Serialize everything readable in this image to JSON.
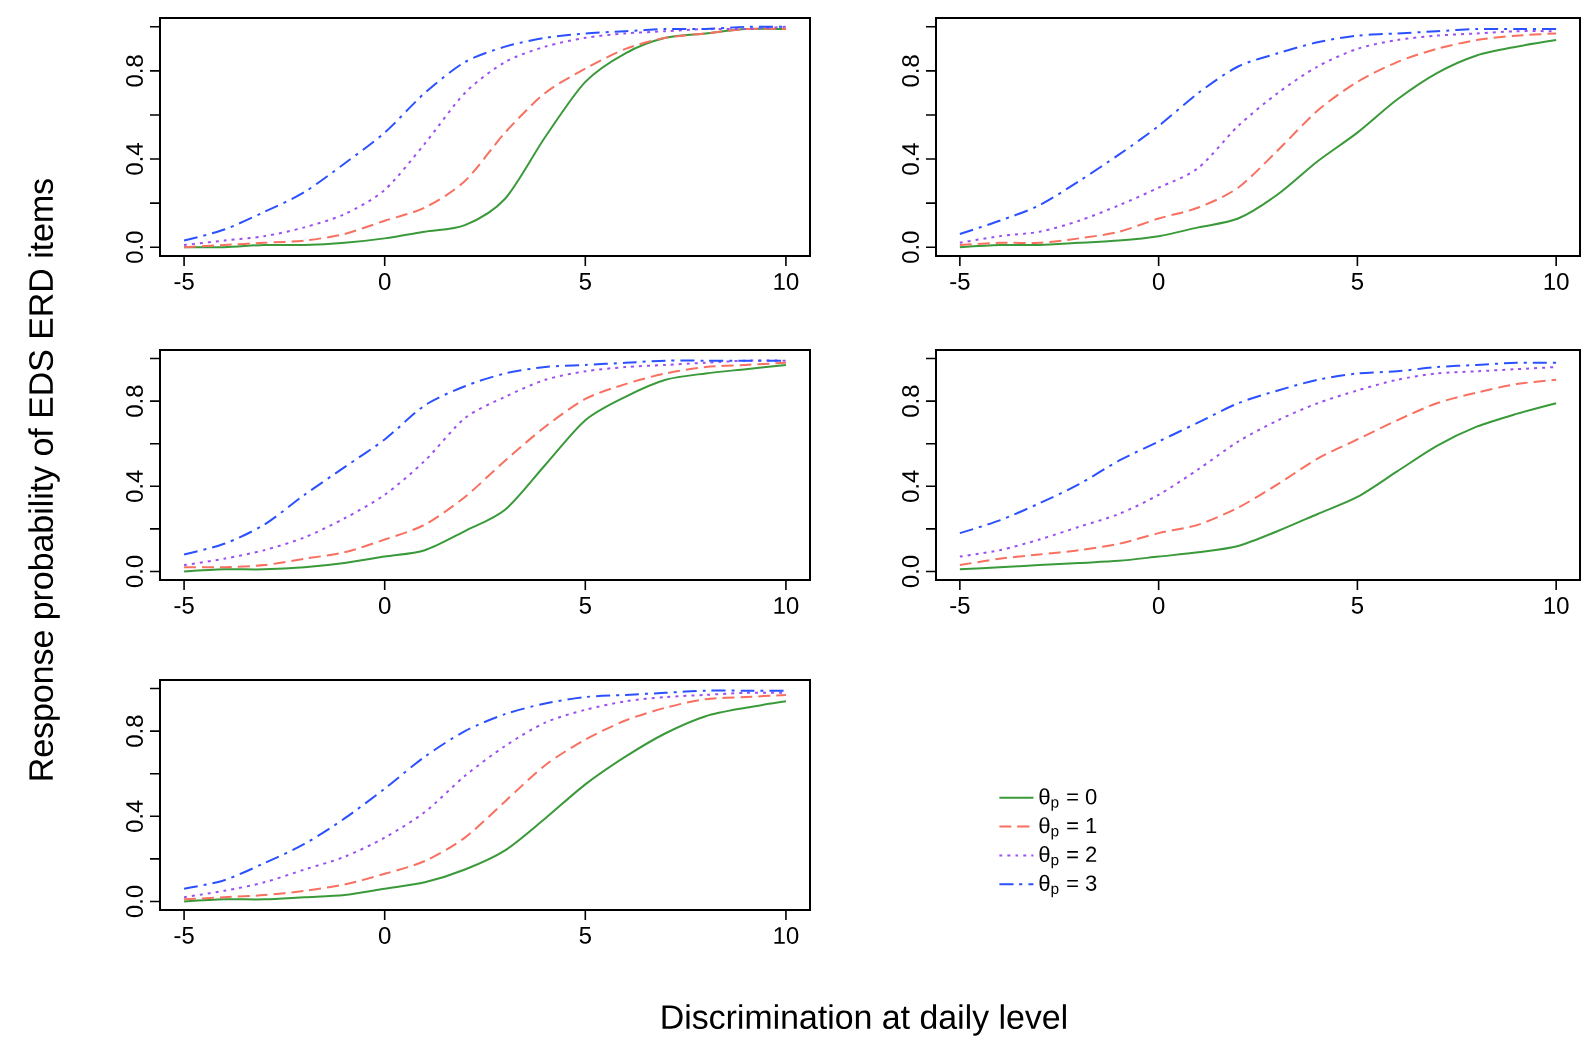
{
  "chart_data": [
    {
      "type": "line",
      "ylabel": "Response probability of EDS ERD items",
      "x": [
        -5,
        -4,
        -3,
        -2,
        -1,
        0,
        1,
        2,
        3,
        4,
        5,
        6,
        7,
        8,
        9,
        10
      ],
      "xlim": [
        -5.6,
        10.6
      ],
      "ylim": [
        -0.04,
        1.04
      ],
      "xticks": [
        -5,
        0,
        5,
        10
      ],
      "yticks": [
        {
          "value": 0,
          "label": "0.0"
        },
        {
          "value": 0.2,
          "label": null
        },
        {
          "value": 0.4,
          "label": "0.4"
        },
        {
          "value": 0.6,
          "label": null
        },
        {
          "value": 0.8,
          "label": "0.8"
        },
        {
          "value": 1,
          "label": null
        }
      ],
      "series": [
        {
          "color": "#3a9a3a",
          "line_style": "solid",
          "values": [
            0.0,
            0.0,
            0.01,
            0.01,
            0.02,
            0.04,
            0.07,
            0.1,
            0.22,
            0.5,
            0.75,
            0.88,
            0.95,
            0.97,
            0.99,
            0.99
          ]
        },
        {
          "color": "#f87060",
          "line_style": "dashed",
          "values": [
            0.0,
            0.01,
            0.02,
            0.03,
            0.06,
            0.12,
            0.18,
            0.3,
            0.52,
            0.7,
            0.81,
            0.9,
            0.95,
            0.97,
            0.99,
            0.99
          ]
        },
        {
          "color": "#9b4ff0",
          "line_style": "dotted",
          "values": [
            0.01,
            0.03,
            0.05,
            0.09,
            0.15,
            0.26,
            0.47,
            0.7,
            0.84,
            0.91,
            0.95,
            0.97,
            0.98,
            0.99,
            0.99,
            1.0
          ]
        },
        {
          "color": "#2b50ff",
          "line_style": "dashdot",
          "values": [
            0.03,
            0.08,
            0.16,
            0.25,
            0.38,
            0.52,
            0.7,
            0.84,
            0.91,
            0.95,
            0.97,
            0.98,
            0.99,
            0.99,
            1.0,
            1.0
          ]
        }
      ]
    },
    {
      "type": "line",
      "x": [
        -5,
        -4,
        -3,
        -2,
        -1,
        0,
        1,
        2,
        3,
        4,
        5,
        6,
        7,
        8,
        9,
        10
      ],
      "xlim": [
        -5.6,
        10.6
      ],
      "ylim": [
        -0.04,
        1.04
      ],
      "xticks": [
        -5,
        0,
        5,
        10
      ],
      "yticks": [
        {
          "value": 0,
          "label": "0.0"
        },
        {
          "value": 0.2,
          "label": null
        },
        {
          "value": 0.4,
          "label": "0.4"
        },
        {
          "value": 0.6,
          "label": null
        },
        {
          "value": 0.8,
          "label": "0.8"
        },
        {
          "value": 1,
          "label": null
        }
      ],
      "series": [
        {
          "color": "#3a9a3a",
          "line_style": "solid",
          "values": [
            0.0,
            0.01,
            0.01,
            0.02,
            0.03,
            0.05,
            0.09,
            0.13,
            0.24,
            0.39,
            0.52,
            0.67,
            0.79,
            0.87,
            0.91,
            0.94
          ]
        },
        {
          "color": "#f87060",
          "line_style": "dashed",
          "values": [
            0.01,
            0.02,
            0.02,
            0.04,
            0.07,
            0.13,
            0.18,
            0.27,
            0.44,
            0.62,
            0.75,
            0.84,
            0.9,
            0.94,
            0.96,
            0.97
          ]
        },
        {
          "color": "#9b4ff0",
          "line_style": "dotted",
          "values": [
            0.02,
            0.05,
            0.07,
            0.12,
            0.19,
            0.27,
            0.36,
            0.55,
            0.7,
            0.82,
            0.9,
            0.94,
            0.96,
            0.97,
            0.98,
            0.98
          ]
        },
        {
          "color": "#2b50ff",
          "line_style": "dashdot",
          "values": [
            0.06,
            0.12,
            0.19,
            0.3,
            0.42,
            0.55,
            0.7,
            0.82,
            0.88,
            0.93,
            0.96,
            0.97,
            0.98,
            0.99,
            0.99,
            0.99
          ]
        }
      ]
    },
    {
      "type": "line",
      "x": [
        -5,
        -4,
        -3,
        -2,
        -1,
        0,
        1,
        2,
        3,
        4,
        5,
        6,
        7,
        8,
        9,
        10
      ],
      "xlim": [
        -5.6,
        10.6
      ],
      "ylim": [
        -0.04,
        1.04
      ],
      "xticks": [
        -5,
        0,
        5,
        10
      ],
      "yticks": [
        {
          "value": 0,
          "label": "0.0"
        },
        {
          "value": 0.2,
          "label": null
        },
        {
          "value": 0.4,
          "label": "0.4"
        },
        {
          "value": 0.6,
          "label": null
        },
        {
          "value": 0.8,
          "label": "0.8"
        },
        {
          "value": 1,
          "label": null
        }
      ],
      "series": [
        {
          "color": "#3a9a3a",
          "line_style": "solid",
          "values": [
            0.0,
            0.01,
            0.01,
            0.02,
            0.04,
            0.07,
            0.1,
            0.19,
            0.29,
            0.5,
            0.71,
            0.82,
            0.9,
            0.93,
            0.95,
            0.97
          ]
        },
        {
          "color": "#f87060",
          "line_style": "dashed",
          "values": [
            0.02,
            0.02,
            0.03,
            0.06,
            0.09,
            0.15,
            0.22,
            0.35,
            0.52,
            0.68,
            0.81,
            0.88,
            0.93,
            0.96,
            0.97,
            0.98
          ]
        },
        {
          "color": "#9b4ff0",
          "line_style": "dotted",
          "values": [
            0.03,
            0.06,
            0.1,
            0.16,
            0.25,
            0.36,
            0.52,
            0.72,
            0.82,
            0.9,
            0.94,
            0.96,
            0.97,
            0.98,
            0.99,
            0.99
          ]
        },
        {
          "color": "#2b50ff",
          "line_style": "dashdot",
          "values": [
            0.08,
            0.13,
            0.22,
            0.36,
            0.49,
            0.62,
            0.78,
            0.87,
            0.93,
            0.96,
            0.97,
            0.98,
            0.99,
            0.99,
            0.99,
            0.99
          ]
        }
      ]
    },
    {
      "type": "line",
      "x": [
        -5,
        -4,
        -3,
        -2,
        -1,
        0,
        1,
        2,
        3,
        4,
        5,
        6,
        7,
        8,
        9,
        10
      ],
      "xlim": [
        -5.6,
        10.6
      ],
      "ylim": [
        -0.04,
        1.04
      ],
      "xticks": [
        -5,
        0,
        5,
        10
      ],
      "yticks": [
        {
          "value": 0,
          "label": "0.0"
        },
        {
          "value": 0.2,
          "label": null
        },
        {
          "value": 0.4,
          "label": "0.4"
        },
        {
          "value": 0.6,
          "label": null
        },
        {
          "value": 0.8,
          "label": "0.8"
        },
        {
          "value": 1,
          "label": null
        }
      ],
      "series": [
        {
          "color": "#3a9a3a",
          "line_style": "solid",
          "values": [
            0.01,
            0.02,
            0.03,
            0.04,
            0.05,
            0.07,
            0.09,
            0.12,
            0.19,
            0.27,
            0.35,
            0.47,
            0.59,
            0.68,
            0.74,
            0.79
          ]
        },
        {
          "color": "#f87060",
          "line_style": "dashed",
          "values": [
            0.03,
            0.06,
            0.08,
            0.1,
            0.13,
            0.18,
            0.22,
            0.3,
            0.41,
            0.53,
            0.62,
            0.71,
            0.79,
            0.84,
            0.88,
            0.9
          ]
        },
        {
          "color": "#9b4ff0",
          "line_style": "dotted",
          "values": [
            0.07,
            0.1,
            0.15,
            0.21,
            0.27,
            0.36,
            0.48,
            0.61,
            0.71,
            0.79,
            0.85,
            0.9,
            0.93,
            0.94,
            0.95,
            0.96
          ]
        },
        {
          "color": "#2b50ff",
          "line_style": "dashdot",
          "values": [
            0.18,
            0.24,
            0.32,
            0.41,
            0.52,
            0.61,
            0.7,
            0.79,
            0.85,
            0.9,
            0.93,
            0.94,
            0.96,
            0.97,
            0.98,
            0.98
          ]
        }
      ]
    },
    {
      "type": "line",
      "xlabel": "Discrimination at daily level",
      "legend": "right",
      "x": [
        -5,
        -4,
        -3,
        -2,
        -1,
        0,
        1,
        2,
        3,
        4,
        5,
        6,
        7,
        8,
        9,
        10
      ],
      "xlim": [
        -5.6,
        10.6
      ],
      "ylim": [
        -0.04,
        1.04
      ],
      "xticks": [
        -5,
        0,
        5,
        10
      ],
      "yticks": [
        {
          "value": 0,
          "label": "0.0"
        },
        {
          "value": 0.2,
          "label": null
        },
        {
          "value": 0.4,
          "label": "0.4"
        },
        {
          "value": 0.6,
          "label": null
        },
        {
          "value": 0.8,
          "label": "0.8"
        },
        {
          "value": 1,
          "label": null
        }
      ],
      "series": [
        {
          "name": "θ$_{p}$ = 0",
          "color": "#3a9a3a",
          "line_style": "solid",
          "values": [
            0.0,
            0.01,
            0.01,
            0.02,
            0.03,
            0.06,
            0.09,
            0.15,
            0.24,
            0.39,
            0.55,
            0.68,
            0.79,
            0.87,
            0.91,
            0.94
          ]
        },
        {
          "name": "θ$_{p}$ = 1",
          "color": "#f87060",
          "line_style": "dashed",
          "values": [
            0.01,
            0.02,
            0.03,
            0.05,
            0.08,
            0.13,
            0.19,
            0.3,
            0.47,
            0.64,
            0.76,
            0.85,
            0.91,
            0.95,
            0.96,
            0.97
          ]
        },
        {
          "name": "θ$_{p}$ = 2",
          "color": "#9b4ff0",
          "line_style": "dotted",
          "values": [
            0.02,
            0.05,
            0.09,
            0.15,
            0.21,
            0.3,
            0.42,
            0.59,
            0.73,
            0.84,
            0.9,
            0.94,
            0.96,
            0.97,
            0.98,
            0.98
          ]
        },
        {
          "name": "θ$_{p}$ = 3",
          "color": "#2b50ff",
          "line_style": "dashdot",
          "values": [
            0.06,
            0.1,
            0.18,
            0.27,
            0.39,
            0.53,
            0.68,
            0.8,
            0.88,
            0.93,
            0.96,
            0.97,
            0.98,
            0.99,
            0.99,
            0.99
          ]
        }
      ]
    }
  ]
}
